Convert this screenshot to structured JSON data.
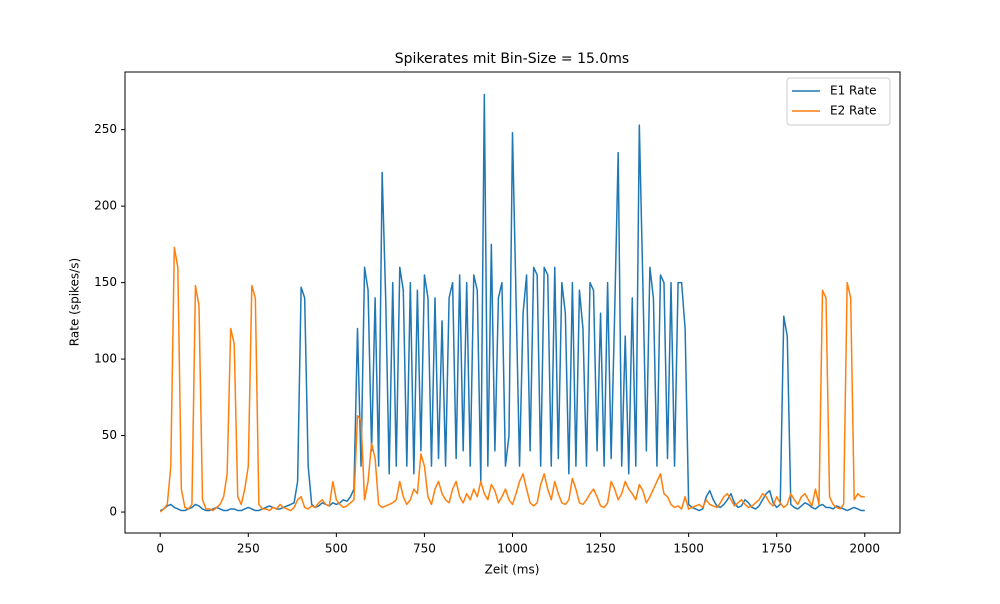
{
  "chart_data": {
    "type": "line",
    "title": "Spikerates mit Bin-Size = 15.0ms",
    "xlabel": "Zeit (ms)",
    "ylabel": "Rate (spikes/s)",
    "x": [
      0,
      10,
      20,
      30,
      40,
      50,
      60,
      70,
      80,
      90,
      100,
      110,
      120,
      130,
      140,
      150,
      160,
      170,
      180,
      190,
      200,
      210,
      220,
      230,
      240,
      250,
      260,
      270,
      280,
      290,
      300,
      310,
      320,
      330,
      340,
      350,
      360,
      370,
      380,
      390,
      400,
      410,
      420,
      430,
      440,
      450,
      460,
      470,
      480,
      490,
      500,
      510,
      520,
      530,
      540,
      550,
      560,
      570,
      580,
      590,
      600,
      610,
      620,
      630,
      640,
      650,
      660,
      670,
      680,
      690,
      700,
      710,
      720,
      730,
      740,
      750,
      760,
      770,
      780,
      790,
      800,
      810,
      820,
      830,
      840,
      850,
      860,
      870,
      880,
      890,
      900,
      910,
      920,
      930,
      940,
      950,
      960,
      970,
      980,
      990,
      1000,
      1010,
      1020,
      1030,
      1040,
      1050,
      1060,
      1070,
      1080,
      1090,
      1100,
      1110,
      1120,
      1130,
      1140,
      1150,
      1160,
      1170,
      1180,
      1190,
      1200,
      1210,
      1220,
      1230,
      1240,
      1250,
      1260,
      1270,
      1280,
      1290,
      1300,
      1310,
      1320,
      1330,
      1340,
      1350,
      1360,
      1370,
      1380,
      1390,
      1400,
      1410,
      1420,
      1430,
      1440,
      1450,
      1460,
      1470,
      1480,
      1490,
      1500,
      1510,
      1520,
      1530,
      1540,
      1550,
      1560,
      1570,
      1580,
      1590,
      1600,
      1610,
      1620,
      1630,
      1640,
      1650,
      1660,
      1670,
      1680,
      1690,
      1700,
      1710,
      1720,
      1730,
      1740,
      1750,
      1760,
      1770,
      1780,
      1790,
      1800,
      1810,
      1820,
      1830,
      1840,
      1850,
      1860,
      1870,
      1880,
      1890,
      1900,
      1910,
      1920,
      1930,
      1940,
      1950,
      1960,
      1970,
      1980,
      1990,
      2000
    ],
    "series": [
      {
        "name": "E1 Rate",
        "color": "#1f77b4",
        "values": [
          1,
          2,
          4,
          5,
          3,
          2,
          1,
          1,
          2,
          3,
          5,
          4,
          2,
          1,
          1,
          2,
          3,
          2,
          1,
          1,
          2,
          2,
          1,
          1,
          2,
          3,
          2,
          1,
          1,
          2,
          3,
          4,
          3,
          2,
          2,
          3,
          4,
          5,
          6,
          20,
          147,
          140,
          30,
          5,
          3,
          4,
          6,
          5,
          4,
          6,
          5,
          6,
          8,
          7,
          10,
          15,
          120,
          30,
          160,
          145,
          40,
          140,
          30,
          222,
          140,
          25,
          150,
          30,
          160,
          145,
          30,
          150,
          25,
          145,
          40,
          155,
          140,
          30,
          140,
          35,
          125,
          30,
          140,
          150,
          35,
          155,
          40,
          150,
          30,
          155,
          145,
          20,
          273,
          30,
          175,
          40,
          140,
          150,
          30,
          50,
          248,
          140,
          30,
          130,
          155,
          40,
          160,
          155,
          30,
          160,
          155,
          30,
          160,
          35,
          150,
          130,
          25,
          150,
          30,
          145,
          120,
          30,
          150,
          145,
          40,
          130,
          30,
          150,
          35,
          130,
          235,
          30,
          115,
          25,
          140,
          30,
          253,
          150,
          40,
          160,
          140,
          30,
          155,
          150,
          35,
          150,
          30,
          150,
          150,
          120,
          5,
          3,
          2,
          1,
          2,
          10,
          14,
          8,
          4,
          3,
          5,
          8,
          12,
          6,
          3,
          4,
          8,
          6,
          3,
          2,
          4,
          8,
          12,
          14,
          6,
          3,
          5,
          128,
          115,
          5,
          3,
          2,
          4,
          6,
          5,
          3,
          2,
          4,
          5,
          3,
          3,
          2,
          4,
          3,
          2,
          1,
          2,
          3,
          2,
          1,
          1
        ]
      },
      {
        "name": "E2 Rate",
        "color": "#ff7f0e",
        "values": [
          0,
          2,
          5,
          30,
          173,
          160,
          15,
          3,
          2,
          5,
          148,
          135,
          8,
          2,
          2,
          1,
          3,
          5,
          10,
          25,
          120,
          110,
          10,
          5,
          15,
          30,
          148,
          140,
          5,
          2,
          2,
          1,
          3,
          2,
          5,
          3,
          2,
          1,
          3,
          8,
          10,
          3,
          2,
          4,
          3,
          6,
          8,
          5,
          4,
          20,
          8,
          5,
          3,
          4,
          6,
          8,
          63,
          60,
          8,
          20,
          45,
          35,
          5,
          3,
          4,
          5,
          6,
          8,
          20,
          10,
          5,
          8,
          15,
          12,
          38,
          30,
          10,
          5,
          15,
          20,
          12,
          8,
          6,
          15,
          20,
          10,
          6,
          12,
          8,
          15,
          10,
          20,
          12,
          8,
          18,
          14,
          6,
          10,
          15,
          8,
          5,
          12,
          20,
          25,
          15,
          6,
          4,
          6,
          18,
          25,
          15,
          8,
          20,
          12,
          6,
          5,
          8,
          22,
          15,
          6,
          5,
          8,
          12,
          15,
          10,
          4,
          3,
          6,
          20,
          15,
          8,
          12,
          20,
          15,
          12,
          8,
          18,
          14,
          6,
          10,
          15,
          20,
          25,
          12,
          10,
          5,
          3,
          4,
          2,
          10,
          2,
          3,
          4,
          5,
          3,
          8,
          5,
          4,
          3,
          6,
          10,
          12,
          8,
          4,
          6,
          8,
          5,
          3,
          4,
          6,
          8,
          12,
          10,
          6,
          4,
          10,
          6,
          3,
          5,
          12,
          8,
          5,
          10,
          12,
          8,
          4,
          15,
          5,
          145,
          140,
          10,
          5,
          3,
          2,
          5,
          150,
          140,
          8,
          12,
          10,
          10
        ]
      }
    ],
    "xlim": [
      -100,
      2100
    ],
    "xticks": [
      0,
      250,
      500,
      750,
      1000,
      1250,
      1500,
      1750,
      2000
    ],
    "ylim": [
      -13.7,
      287.7
    ],
    "yticks": [
      0,
      50,
      100,
      150,
      200,
      250
    ],
    "grid": false,
    "legend": "upper right"
  }
}
